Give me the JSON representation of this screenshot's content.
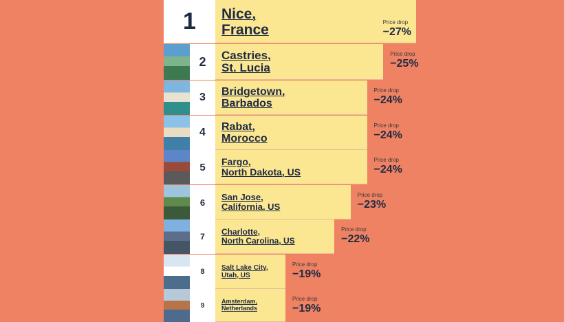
{
  "chart_data": {
    "type": "bar",
    "orientation": "horizontal",
    "value_caption": "Price drop",
    "colors": {
      "background": "#ee8262",
      "bar": "#fbe692",
      "rank_cell": "#ffffff",
      "text": "#1e2a44"
    },
    "rows": [
      {
        "rank": "1",
        "city": "Nice,",
        "region": "France",
        "value": -27,
        "value_label": "−27%"
      },
      {
        "rank": "2",
        "city": "Castries,",
        "region": "St. Lucia",
        "value": -25,
        "value_label": "−25%"
      },
      {
        "rank": "3",
        "city": "Bridgetown,",
        "region": "Barbados",
        "value": -24,
        "value_label": "−24%"
      },
      {
        "rank": "4",
        "city": "Rabat,",
        "region": "Morocco",
        "value": -24,
        "value_label": "−24%"
      },
      {
        "rank": "5",
        "city": "Fargo,",
        "region": "North Dakota, US",
        "value": -24,
        "value_label": "−24%"
      },
      {
        "rank": "6",
        "city": "San Jose,",
        "region": "California, US",
        "value": -23,
        "value_label": "−23%"
      },
      {
        "rank": "7",
        "city": "Charlotte,",
        "region": "North Carolina, US",
        "value": -22,
        "value_label": "−22%"
      },
      {
        "rank": "8",
        "city": "Salt Lake City,",
        "region": "Utah, US",
        "value": -19,
        "value_label": "−19%"
      },
      {
        "rank": "9",
        "city": "Amsterdam,",
        "region": "Netherlands",
        "value": -19,
        "value_label": "−19%"
      }
    ]
  }
}
